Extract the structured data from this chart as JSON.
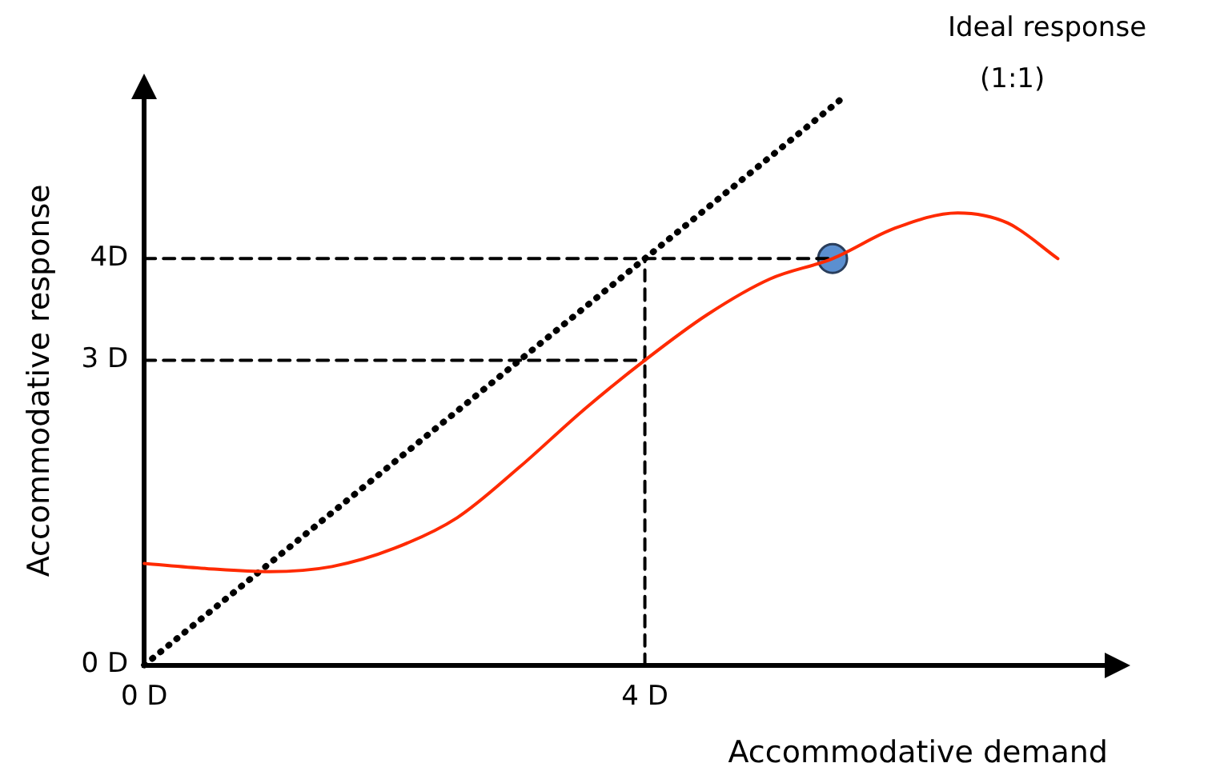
{
  "chart_data": {
    "type": "line",
    "xlabel": "Accommodative demand",
    "ylabel": "Accommodative response",
    "xlim": [
      0,
      7.7
    ],
    "ylim": [
      0,
      5.6
    ],
    "xticks": [
      {
        "value": 0,
        "label": "0 D"
      },
      {
        "value": 4,
        "label": "4 D"
      }
    ],
    "yticks": [
      {
        "value": 0,
        "label": "0 D"
      },
      {
        "value": 3,
        "label": "3 D"
      },
      {
        "value": 4,
        "label": "4D"
      }
    ],
    "grid": false,
    "legend": false,
    "annotations": [
      "Ideal response",
      "(1:1)"
    ],
    "series": [
      {
        "type": "line",
        "color": "#ff2a00",
        "line_style": "solid",
        "marker": "none",
        "x": [
          0,
          0.5,
          1,
          1.5,
          2,
          2.5,
          3,
          3.5,
          4,
          4.5,
          5,
          5.5,
          6,
          6.5,
          6.9,
          7.3
        ],
        "values": [
          1.0,
          0.95,
          0.92,
          0.97,
          1.15,
          1.45,
          1.95,
          2.5,
          3,
          3.45,
          3.8,
          4.0,
          4.3,
          4.45,
          4.35,
          4.0
        ]
      },
      {
        "type": "line",
        "color": "#000000",
        "line_style": "dotted",
        "marker": "none",
        "x": [
          0,
          5.6
        ],
        "values": [
          0,
          5.6
        ]
      },
      {
        "type": "line",
        "color": "#000000",
        "line_style": "dashed",
        "marker": "none",
        "x": [
          0,
          5.5
        ],
        "values": [
          4,
          4
        ]
      },
      {
        "type": "line",
        "color": "#000000",
        "line_style": "dashed",
        "marker": "none",
        "x": [
          0,
          4
        ],
        "values": [
          3,
          3
        ]
      },
      {
        "type": "line",
        "color": "#000000",
        "line_style": "dashed",
        "marker": "none",
        "x": [
          4,
          4
        ],
        "values": [
          0,
          4
        ]
      },
      {
        "type": "scatter",
        "color": "#5b8fd0",
        "marker": "circle",
        "x": [
          5.5
        ],
        "values": [
          4.0
        ]
      }
    ]
  }
}
